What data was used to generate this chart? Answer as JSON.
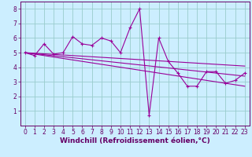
{
  "title": "",
  "xlabel": "Windchill (Refroidissement éolien,°C)",
  "bg_color": "#cceeff",
  "grid_color": "#99cccc",
  "line_color": "#990099",
  "marker_color": "#990099",
  "x_hours": [
    0,
    1,
    2,
    3,
    4,
    5,
    6,
    7,
    8,
    9,
    10,
    11,
    12,
    13,
    14,
    15,
    16,
    17,
    18,
    19,
    20,
    21,
    22,
    23
  ],
  "y_data": [
    5.0,
    4.8,
    5.6,
    4.9,
    5.0,
    6.1,
    5.6,
    5.5,
    6.0,
    5.8,
    5.0,
    6.7,
    8.0,
    0.7,
    6.0,
    4.4,
    3.6,
    2.7,
    2.7,
    3.7,
    3.7,
    2.9,
    3.1,
    3.6
  ],
  "trend1": [
    5.0,
    4.93,
    4.86,
    4.79,
    4.72,
    4.65,
    4.58,
    4.51,
    4.44,
    4.37,
    4.3,
    4.23,
    4.16,
    4.09,
    4.02,
    3.95,
    3.88,
    3.81,
    3.74,
    3.67,
    3.6,
    3.53,
    3.46,
    3.39
  ],
  "trend2": [
    5.0,
    4.96,
    4.92,
    4.88,
    4.84,
    4.8,
    4.76,
    4.72,
    4.68,
    4.64,
    4.6,
    4.56,
    4.52,
    4.48,
    4.44,
    4.4,
    4.36,
    4.32,
    4.28,
    4.24,
    4.2,
    4.16,
    4.12,
    4.08
  ],
  "trend3": [
    5.0,
    4.9,
    4.8,
    4.7,
    4.6,
    4.5,
    4.4,
    4.3,
    4.2,
    4.1,
    4.0,
    3.9,
    3.8,
    3.7,
    3.6,
    3.5,
    3.4,
    3.3,
    3.2,
    3.1,
    3.0,
    2.9,
    2.8,
    2.7
  ],
  "ylim": [
    0,
    8.5
  ],
  "xlim": [
    -0.5,
    23.5
  ],
  "ytick_vals": [
    1,
    2,
    3,
    4,
    5,
    6,
    7,
    8
  ],
  "ytick_labels": [
    "1",
    "2",
    "3",
    "4",
    "5",
    "6",
    "7",
    "8"
  ],
  "xtick_labels": [
    "0",
    "1",
    "2",
    "3",
    "4",
    "5",
    "6",
    "7",
    "8",
    "9",
    "10",
    "11",
    "12",
    "13",
    "14",
    "15",
    "16",
    "17",
    "18",
    "19",
    "20",
    "21",
    "22",
    "23"
  ],
  "xlabel_fontsize": 6.5,
  "tick_fontsize": 5.5
}
